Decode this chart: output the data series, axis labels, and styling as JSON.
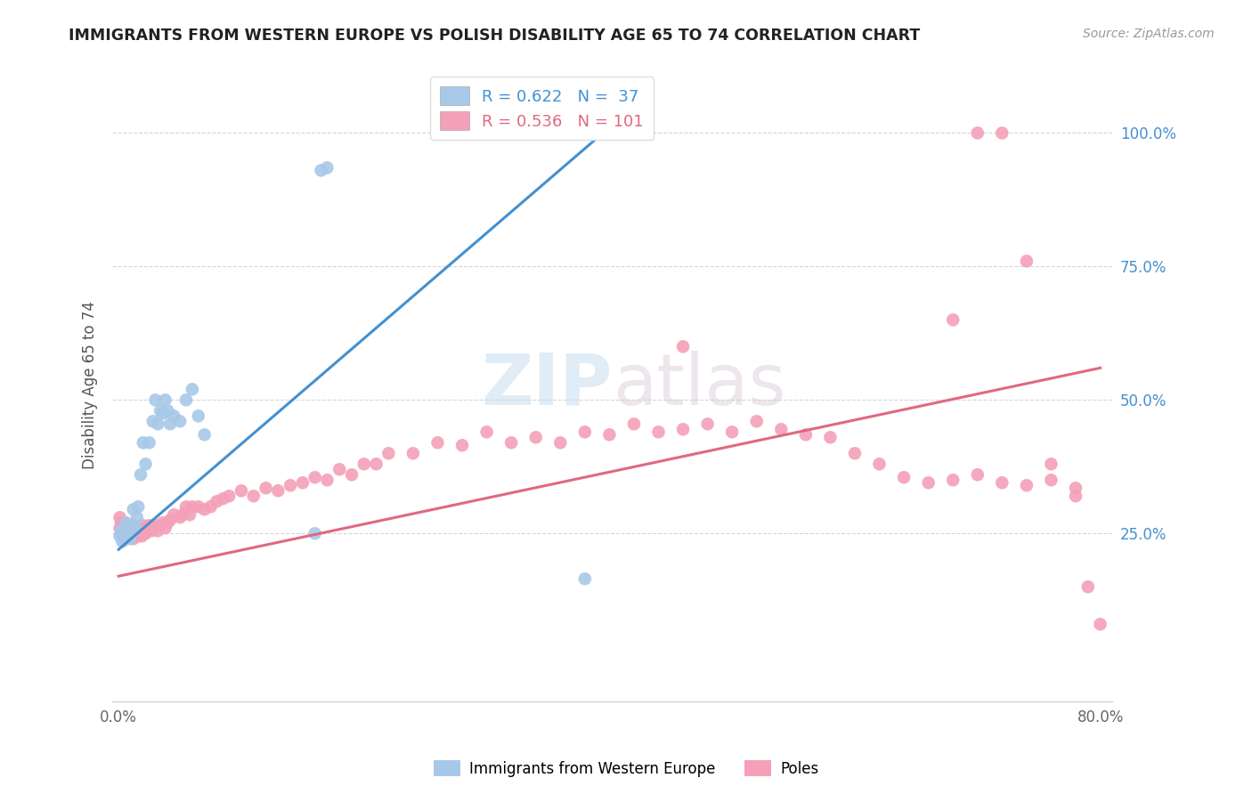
{
  "title": "IMMIGRANTS FROM WESTERN EUROPE VS POLISH DISABILITY AGE 65 TO 74 CORRELATION CHART",
  "source": "Source: ZipAtlas.com",
  "ylabel": "Disability Age 65 to 74",
  "right_yticks": [
    "100.0%",
    "75.0%",
    "50.0%",
    "25.0%"
  ],
  "right_ytick_vals": [
    1.0,
    0.75,
    0.5,
    0.25
  ],
  "xlim": [
    0.0,
    0.8
  ],
  "ylim": [
    0.0,
    1.1
  ],
  "blue_R": 0.622,
  "blue_N": 37,
  "pink_R": 0.536,
  "pink_N": 101,
  "blue_color": "#a8c8e8",
  "pink_color": "#f4a0b8",
  "blue_line_color": "#4490d0",
  "pink_line_color": "#e06880",
  "legend_label_blue": "Immigrants from Western Europe",
  "legend_label_pink": "Poles",
  "watermark": "ZIPatlas",
  "blue_line_x0": 0.0,
  "blue_line_y0": 0.22,
  "blue_line_x1": 0.42,
  "blue_line_y1": 1.05,
  "pink_line_x0": 0.0,
  "pink_line_y0": 0.17,
  "pink_line_x1": 0.8,
  "pink_line_y1": 0.56,
  "blue_pts_x": [
    0.001,
    0.002,
    0.003,
    0.004,
    0.005,
    0.006,
    0.007,
    0.008,
    0.009,
    0.01,
    0.011,
    0.012,
    0.013,
    0.015,
    0.016,
    0.018,
    0.02,
    0.022,
    0.025,
    0.028,
    0.03,
    0.032,
    0.034,
    0.036,
    0.038,
    0.04,
    0.042,
    0.045,
    0.05,
    0.055,
    0.06,
    0.065,
    0.07,
    0.16,
    0.165,
    0.17,
    0.38
  ],
  "blue_pts_y": [
    0.245,
    0.255,
    0.235,
    0.25,
    0.24,
    0.27,
    0.245,
    0.255,
    0.24,
    0.265,
    0.25,
    0.295,
    0.265,
    0.28,
    0.3,
    0.36,
    0.42,
    0.38,
    0.42,
    0.46,
    0.5,
    0.455,
    0.48,
    0.475,
    0.5,
    0.48,
    0.455,
    0.47,
    0.46,
    0.5,
    0.52,
    0.47,
    0.435,
    0.25,
    0.93,
    0.935,
    0.165
  ],
  "pink_pts_x": [
    0.001,
    0.001,
    0.002,
    0.002,
    0.003,
    0.003,
    0.004,
    0.004,
    0.005,
    0.005,
    0.006,
    0.007,
    0.008,
    0.009,
    0.01,
    0.01,
    0.011,
    0.012,
    0.013,
    0.014,
    0.015,
    0.016,
    0.017,
    0.018,
    0.019,
    0.02,
    0.021,
    0.022,
    0.023,
    0.025,
    0.027,
    0.028,
    0.03,
    0.032,
    0.034,
    0.036,
    0.038,
    0.04,
    0.042,
    0.045,
    0.05,
    0.052,
    0.055,
    0.058,
    0.06,
    0.065,
    0.07,
    0.075,
    0.08,
    0.085,
    0.09,
    0.1,
    0.11,
    0.12,
    0.13,
    0.14,
    0.15,
    0.16,
    0.17,
    0.18,
    0.19,
    0.2,
    0.21,
    0.22,
    0.24,
    0.26,
    0.28,
    0.3,
    0.32,
    0.34,
    0.36,
    0.38,
    0.4,
    0.42,
    0.44,
    0.46,
    0.48,
    0.5,
    0.52,
    0.54,
    0.56,
    0.58,
    0.6,
    0.62,
    0.64,
    0.66,
    0.68,
    0.7,
    0.72,
    0.74,
    0.76,
    0.78,
    0.46,
    0.68,
    0.7,
    0.72,
    0.74,
    0.76,
    0.78,
    0.79,
    0.8
  ],
  "pink_pts_y": [
    0.26,
    0.28,
    0.25,
    0.27,
    0.245,
    0.265,
    0.24,
    0.26,
    0.255,
    0.27,
    0.245,
    0.255,
    0.265,
    0.245,
    0.25,
    0.265,
    0.255,
    0.24,
    0.26,
    0.25,
    0.26,
    0.245,
    0.255,
    0.26,
    0.245,
    0.265,
    0.255,
    0.25,
    0.255,
    0.265,
    0.255,
    0.26,
    0.265,
    0.255,
    0.265,
    0.27,
    0.26,
    0.27,
    0.275,
    0.285,
    0.28,
    0.285,
    0.3,
    0.285,
    0.3,
    0.3,
    0.295,
    0.3,
    0.31,
    0.315,
    0.32,
    0.33,
    0.32,
    0.335,
    0.33,
    0.34,
    0.345,
    0.355,
    0.35,
    0.37,
    0.36,
    0.38,
    0.38,
    0.4,
    0.4,
    0.42,
    0.415,
    0.44,
    0.42,
    0.43,
    0.42,
    0.44,
    0.435,
    0.455,
    0.44,
    0.445,
    0.455,
    0.44,
    0.46,
    0.445,
    0.435,
    0.43,
    0.4,
    0.38,
    0.355,
    0.345,
    0.35,
    0.36,
    0.345,
    0.34,
    0.35,
    0.335,
    0.6,
    0.65,
    1.0,
    1.0,
    0.76,
    0.38,
    0.32,
    0.15,
    0.08
  ]
}
